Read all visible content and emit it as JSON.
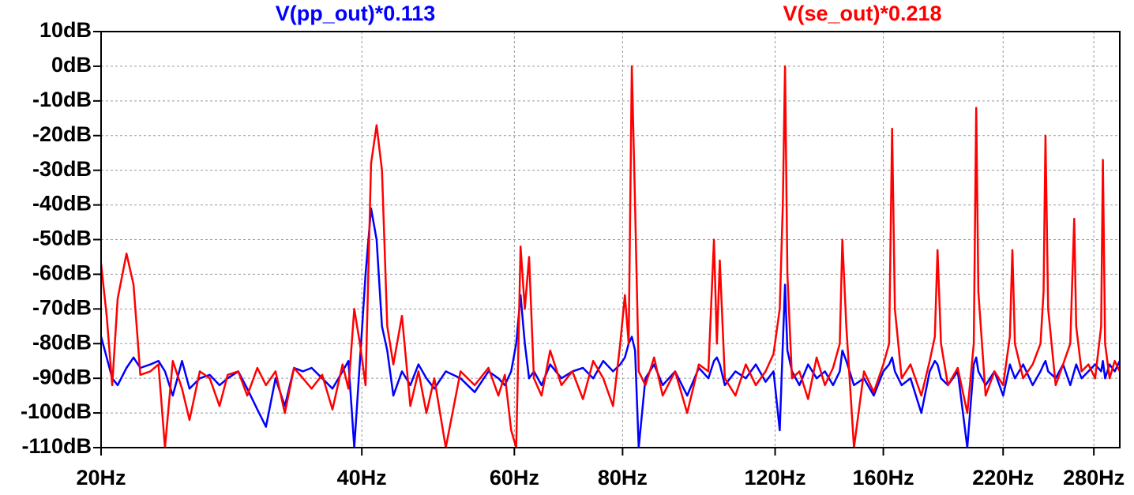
{
  "chart_data": {
    "type": "line",
    "xscale": "log",
    "grid": true,
    "xlim": [
      20,
      300
    ],
    "ylim": [
      -110,
      10
    ],
    "xticks": [
      {
        "value": 20,
        "label": "20Hz"
      },
      {
        "value": 40,
        "label": "40Hz"
      },
      {
        "value": 60,
        "label": "60Hz"
      },
      {
        "value": 80,
        "label": "80Hz"
      },
      {
        "value": 120,
        "label": "120Hz"
      },
      {
        "value": 160,
        "label": "160Hz"
      },
      {
        "value": 220,
        "label": "220Hz"
      },
      {
        "value": 280,
        "label": "280Hz"
      }
    ],
    "yticks": [
      {
        "value": 10,
        "label": "10dB"
      },
      {
        "value": 0,
        "label": "0dB"
      },
      {
        "value": -10,
        "label": "-10dB"
      },
      {
        "value": -20,
        "label": "-20dB"
      },
      {
        "value": -30,
        "label": "-30dB"
      },
      {
        "value": -40,
        "label": "-40dB"
      },
      {
        "value": -50,
        "label": "-50dB"
      },
      {
        "value": -60,
        "label": "-60dB"
      },
      {
        "value": -70,
        "label": "-70dB"
      },
      {
        "value": -80,
        "label": "-80dB"
      },
      {
        "value": -90,
        "label": "-90dB"
      },
      {
        "value": -100,
        "label": "-100dB"
      },
      {
        "value": -110,
        "label": "-110dB"
      }
    ],
    "x": [
      20,
      20.3,
      20.6,
      20.9,
      21.4,
      21.8,
      22.2,
      22.8,
      23.3,
      23.7,
      24.2,
      24.8,
      25.3,
      26,
      26.7,
      27.4,
      28,
      28.8,
      29.5,
      30.3,
      31,
      31.8,
      32.6,
      33.4,
      34.2,
      35,
      36,
      37,
      38,
      38.6,
      39.2,
      39.8,
      40.4,
      41,
      41.6,
      42.2,
      42.8,
      43.5,
      44.5,
      45.5,
      46.5,
      47.5,
      48.5,
      50,
      52,
      54,
      56,
      57.5,
      58.5,
      59.5,
      60.3,
      61,
      61.7,
      62.4,
      63.2,
      64.5,
      66,
      68,
      70,
      72,
      74,
      76,
      78,
      79.5,
      80.5,
      81.3,
      82,
      82.7,
      83.5,
      85,
      87,
      89,
      92,
      95,
      98,
      100.5,
      102,
      102.8,
      103.6,
      105,
      108,
      111,
      114,
      117,
      119.5,
      121.5,
      122.5,
      123.2,
      124,
      125.5,
      128,
      131,
      134,
      137,
      140,
      142.5,
      143.5,
      145,
      148,
      152,
      156,
      160,
      162.5,
      163.8,
      165,
      168,
      172,
      177,
      181,
      183.5,
      184.8,
      186.5,
      190,
      195,
      200,
      203.5,
      204.8,
      206,
      210,
      215,
      220,
      224,
      225.5,
      227,
      232,
      238,
      243,
      245,
      246.2,
      248,
      253,
      258,
      263,
      265.8,
      267.2,
      271,
      276,
      281,
      285.5,
      286.8,
      288.5,
      292,
      296,
      300
    ],
    "series": [
      {
        "name": "V(pp_out)*0.113",
        "color": "#0000ff",
        "values": [
          -78,
          -84,
          -90,
          -92,
          -87,
          -84,
          -87,
          -86,
          -85,
          -88,
          -95,
          -85,
          -93,
          -90,
          -89,
          -92,
          -90,
          -88,
          -93,
          -99,
          -104,
          -90,
          -98,
          -87,
          -88,
          -87,
          -90,
          -93,
          -88,
          -85,
          -110,
          -85,
          -60,
          -41,
          -50,
          -75,
          -82,
          -95,
          -88,
          -92,
          -86,
          -90,
          -93,
          -88,
          -90,
          -94,
          -88,
          -90,
          -92,
          -88,
          -80,
          -66,
          -80,
          -90,
          -88,
          -92,
          -86,
          -90,
          -88,
          -87,
          -90,
          -85,
          -88,
          -86,
          -84,
          -80,
          -78,
          -82,
          -110,
          -90,
          -86,
          -92,
          -88,
          -95,
          -87,
          -90,
          -85,
          -84,
          -86,
          -92,
          -88,
          -90,
          -86,
          -91,
          -88,
          -105,
          -80,
          -63,
          -82,
          -88,
          -92,
          -86,
          -90,
          -88,
          -92,
          -88,
          -82,
          -85,
          -92,
          -90,
          -95,
          -88,
          -86,
          -84,
          -88,
          -92,
          -90,
          -100,
          -88,
          -85,
          -86,
          -90,
          -92,
          -88,
          -110,
          -86,
          -84,
          -88,
          -92,
          -88,
          -95,
          -86,
          -88,
          -90,
          -86,
          -92,
          -88,
          -86,
          -85,
          -88,
          -90,
          -86,
          -92,
          -88,
          -86,
          -90,
          -88,
          -86,
          -88,
          -85,
          -90,
          -86,
          -88,
          -85
        ]
      },
      {
        "name": "V(se_out)*0.218",
        "color": "#ff0000",
        "values": [
          -57,
          -72,
          -92,
          -67,
          -54,
          -63,
          -89,
          -88,
          -86,
          -110,
          -85,
          -93,
          -102,
          -88,
          -90,
          -98,
          -89,
          -88,
          -95,
          -87,
          -92,
          -88,
          -100,
          -87,
          -90,
          -93,
          -89,
          -99,
          -86,
          -93,
          -70,
          -80,
          -92,
          -28,
          -17,
          -30,
          -75,
          -86,
          -72,
          -98,
          -88,
          -100,
          -90,
          -110,
          -88,
          -92,
          -87,
          -95,
          -89,
          -105,
          -110,
          -52,
          -70,
          -55,
          -90,
          -95,
          -82,
          -92,
          -88,
          -96,
          -85,
          -90,
          -98,
          -80,
          -66,
          -80,
          0,
          -40,
          -88,
          -92,
          -84,
          -95,
          -88,
          -100,
          -86,
          -88,
          -50,
          -80,
          -56,
          -90,
          -95,
          -86,
          -92,
          -88,
          -83,
          -70,
          -40,
          0,
          -60,
          -90,
          -88,
          -96,
          -84,
          -92,
          -87,
          -80,
          -50,
          -75,
          -110,
          -88,
          -94,
          -86,
          -80,
          -18,
          -70,
          -90,
          -86,
          -95,
          -85,
          -78,
          -53,
          -80,
          -92,
          -87,
          -100,
          -80,
          -12,
          -65,
          -95,
          -88,
          -92,
          -78,
          -53,
          -80,
          -90,
          -86,
          -80,
          -65,
          -20,
          -70,
          -92,
          -86,
          -80,
          -44,
          -75,
          -88,
          -86,
          -90,
          -75,
          -27,
          -80,
          -90,
          -85,
          -88
        ]
      }
    ]
  }
}
